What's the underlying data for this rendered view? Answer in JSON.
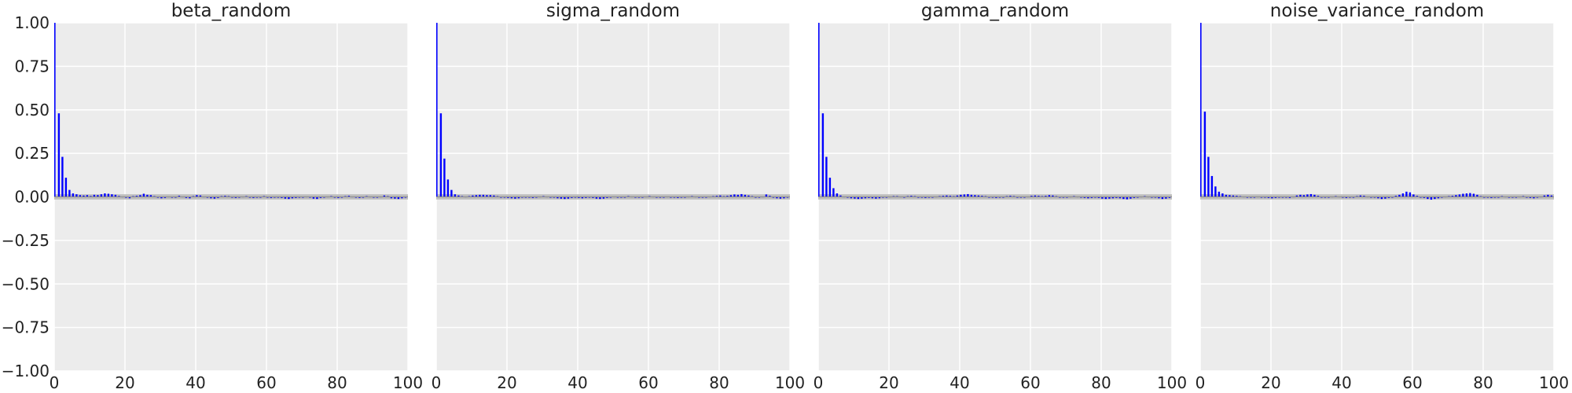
{
  "chart_data": [
    {
      "type": "bar",
      "title": "beta_random",
      "xlabel": "",
      "ylabel": "",
      "xlim": [
        0,
        100
      ],
      "ylim": [
        -1,
        1
      ],
      "xticks": [
        0,
        20,
        40,
        60,
        80,
        100
      ],
      "yticks": [
        -1.0,
        -0.75,
        -0.5,
        -0.25,
        0.0,
        0.25,
        0.5,
        0.75,
        1.0
      ],
      "ytick_labels": [
        "−1.00",
        "−0.75",
        "−0.50",
        "−0.25",
        "0.00",
        "0.25",
        "0.50",
        "0.75",
        "1.00"
      ],
      "xtick_labels": [
        "0",
        "20",
        "40",
        "60",
        "80",
        "100"
      ],
      "grid": true,
      "confidence_band": [
        -0.015,
        0.015
      ],
      "bar_color": "#0000ff",
      "band_color": "#bdbdbd",
      "lags": [
        0,
        1,
        2,
        3,
        4,
        5,
        6,
        7,
        8,
        9,
        10,
        11,
        12,
        13,
        14,
        15,
        16,
        17,
        18,
        19,
        20,
        21,
        22,
        23,
        24,
        25,
        26,
        27,
        28,
        29,
        30,
        31,
        32,
        33,
        34,
        35,
        36,
        37,
        38,
        39,
        40,
        41,
        42,
        43,
        44,
        45,
        46,
        47,
        48,
        49,
        50,
        51,
        52,
        53,
        54,
        55,
        56,
        57,
        58,
        59,
        60,
        61,
        62,
        63,
        64,
        65,
        66,
        67,
        68,
        69,
        70,
        71,
        72,
        73,
        74,
        75,
        76,
        77,
        78,
        79,
        80,
        81,
        82,
        83,
        84,
        85,
        86,
        87,
        88,
        89,
        90,
        91,
        92,
        93,
        94,
        95,
        96,
        97,
        98,
        99
      ],
      "values": [
        1.0,
        0.48,
        0.23,
        0.11,
        0.04,
        0.02,
        0.015,
        0.01,
        0.008,
        0.01,
        0.005,
        0.012,
        0.01,
        0.015,
        0.02,
        0.018,
        0.015,
        0.012,
        0.005,
        0.002,
        -0.005,
        -0.008,
        0.004,
        0.006,
        0.01,
        0.018,
        0.012,
        0.01,
        0.004,
        -0.003,
        -0.008,
        -0.006,
        0.002,
        -0.004,
        0.0,
        0.006,
        0.002,
        -0.006,
        -0.008,
        0.004,
        0.01,
        0.008,
        0.002,
        -0.004,
        -0.008,
        -0.01,
        -0.006,
        0.004,
        0.006,
        0.004,
        -0.002,
        -0.006,
        -0.004,
        0.002,
        0.004,
        -0.002,
        -0.006,
        -0.004,
        0.0,
        0.004,
        -0.002,
        -0.006,
        -0.004,
        -0.002,
        -0.006,
        -0.01,
        -0.012,
        -0.008,
        -0.006,
        -0.004,
        0.0,
        0.002,
        -0.004,
        -0.01,
        -0.012,
        -0.006,
        0.0,
        0.002,
        0.004,
        -0.004,
        -0.006,
        -0.002,
        0.004,
        0.006,
        0.002,
        -0.004,
        -0.006,
        -0.002,
        0.004,
        0.002,
        -0.002,
        -0.004,
        0.002,
        0.008,
        0.004,
        -0.008,
        -0.01,
        -0.012,
        -0.008,
        -0.004
      ]
    },
    {
      "type": "bar",
      "title": "sigma_random",
      "xlabel": "",
      "ylabel": "",
      "xlim": [
        0,
        100
      ],
      "ylim": [
        -1,
        1
      ],
      "xticks": [
        0,
        20,
        40,
        60,
        80,
        100
      ],
      "xtick_labels": [
        "0",
        "20",
        "40",
        "60",
        "80",
        "100"
      ],
      "grid": true,
      "confidence_band": [
        -0.015,
        0.015
      ],
      "bar_color": "#0000ff",
      "band_color": "#bdbdbd",
      "lags": [
        0,
        1,
        2,
        3,
        4,
        5,
        6,
        7,
        8,
        9,
        10,
        11,
        12,
        13,
        14,
        15,
        16,
        17,
        18,
        19,
        20,
        21,
        22,
        23,
        24,
        25,
        26,
        27,
        28,
        29,
        30,
        31,
        32,
        33,
        34,
        35,
        36,
        37,
        38,
        39,
        40,
        41,
        42,
        43,
        44,
        45,
        46,
        47,
        48,
        49,
        50,
        51,
        52,
        53,
        54,
        55,
        56,
        57,
        58,
        59,
        60,
        61,
        62,
        63,
        64,
        65,
        66,
        67,
        68,
        69,
        70,
        71,
        72,
        73,
        74,
        75,
        76,
        77,
        78,
        79,
        80,
        81,
        82,
        83,
        84,
        85,
        86,
        87,
        88,
        89,
        90,
        91,
        92,
        93,
        94,
        95,
        96,
        97,
        98,
        99
      ],
      "values": [
        1.0,
        0.48,
        0.22,
        0.1,
        0.04,
        0.015,
        0.008,
        0.004,
        0.002,
        0.004,
        0.008,
        0.01,
        0.012,
        0.012,
        0.01,
        0.01,
        0.008,
        0.004,
        0.0,
        -0.004,
        -0.006,
        -0.008,
        -0.01,
        -0.008,
        -0.004,
        0.0,
        -0.004,
        -0.006,
        -0.002,
        0.002,
        0.004,
        0.002,
        0.0,
        -0.004,
        -0.008,
        -0.01,
        -0.012,
        -0.01,
        -0.006,
        -0.004,
        -0.006,
        -0.008,
        -0.006,
        -0.004,
        -0.006,
        -0.01,
        -0.012,
        -0.01,
        -0.006,
        0.0,
        0.002,
        -0.002,
        -0.004,
        0.0,
        0.004,
        0.002,
        -0.002,
        -0.004,
        -0.002,
        0.002,
        0.004,
        0.002,
        -0.002,
        -0.004,
        -0.002,
        0.002,
        0.0,
        -0.004,
        -0.006,
        -0.004,
        -0.002,
        0.002,
        0.004,
        0.002,
        -0.002,
        -0.004,
        -0.002,
        0.002,
        0.004,
        0.006,
        0.008,
        0.004,
        0.006,
        0.01,
        0.014,
        0.012,
        0.016,
        0.012,
        0.008,
        0.004,
        0.0,
        -0.004,
        0.002,
        0.014,
        0.006,
        -0.004,
        -0.008,
        -0.01,
        -0.008,
        -0.004
      ]
    },
    {
      "type": "bar",
      "title": "gamma_random",
      "xlabel": "",
      "ylabel": "",
      "xlim": [
        0,
        100
      ],
      "ylim": [
        -1,
        1
      ],
      "xticks": [
        0,
        20,
        40,
        60,
        80,
        100
      ],
      "xtick_labels": [
        "0",
        "20",
        "40",
        "60",
        "80",
        "100"
      ],
      "grid": true,
      "confidence_band": [
        -0.015,
        0.015
      ],
      "bar_color": "#0000ff",
      "band_color": "#bdbdbd",
      "lags": [
        0,
        1,
        2,
        3,
        4,
        5,
        6,
        7,
        8,
        9,
        10,
        11,
        12,
        13,
        14,
        15,
        16,
        17,
        18,
        19,
        20,
        21,
        22,
        23,
        24,
        25,
        26,
        27,
        28,
        29,
        30,
        31,
        32,
        33,
        34,
        35,
        36,
        37,
        38,
        39,
        40,
        41,
        42,
        43,
        44,
        45,
        46,
        47,
        48,
        49,
        50,
        51,
        52,
        53,
        54,
        55,
        56,
        57,
        58,
        59,
        60,
        61,
        62,
        63,
        64,
        65,
        66,
        67,
        68,
        69,
        70,
        71,
        72,
        73,
        74,
        75,
        76,
        77,
        78,
        79,
        80,
        81,
        82,
        83,
        84,
        85,
        86,
        87,
        88,
        89,
        90,
        91,
        92,
        93,
        94,
        95,
        96,
        97,
        98,
        99
      ],
      "values": [
        1.0,
        0.48,
        0.23,
        0.11,
        0.05,
        0.02,
        0.008,
        0.002,
        -0.004,
        -0.008,
        -0.01,
        -0.012,
        -0.01,
        -0.008,
        -0.006,
        -0.008,
        -0.01,
        -0.008,
        -0.004,
        0.0,
        0.002,
        0.004,
        0.004,
        0.002,
        0.0,
        0.004,
        0.006,
        0.004,
        0.0,
        -0.004,
        -0.006,
        -0.004,
        -0.002,
        0.002,
        0.004,
        0.006,
        0.008,
        0.006,
        0.004,
        0.008,
        0.012,
        0.014,
        0.016,
        0.012,
        0.01,
        0.008,
        0.006,
        0.004,
        0.0,
        -0.004,
        -0.006,
        -0.004,
        0.0,
        0.004,
        0.006,
        0.004,
        0.0,
        -0.004,
        -0.002,
        0.002,
        0.006,
        0.008,
        0.006,
        0.004,
        0.006,
        0.01,
        0.008,
        0.004,
        0.0,
        -0.004,
        -0.002,
        0.002,
        0.004,
        0.002,
        -0.002,
        -0.006,
        -0.008,
        -0.006,
        -0.004,
        -0.006,
        -0.01,
        -0.012,
        -0.01,
        -0.008,
        -0.006,
        -0.008,
        -0.012,
        -0.014,
        -0.01,
        -0.006,
        -0.002,
        0.002,
        0.004,
        0.002,
        -0.002,
        -0.004,
        -0.008,
        -0.012,
        -0.01,
        -0.006
      ]
    },
    {
      "type": "bar",
      "title": "noise_variance_random",
      "xlabel": "",
      "ylabel": "",
      "xlim": [
        0,
        100
      ],
      "ylim": [
        -1,
        1
      ],
      "xticks": [
        0,
        20,
        40,
        60,
        80,
        100
      ],
      "xtick_labels": [
        "0",
        "20",
        "40",
        "60",
        "80",
        "100"
      ],
      "grid": true,
      "confidence_band": [
        -0.015,
        0.015
      ],
      "bar_color": "#0000ff",
      "band_color": "#bdbdbd",
      "lags": [
        0,
        1,
        2,
        3,
        4,
        5,
        6,
        7,
        8,
        9,
        10,
        11,
        12,
        13,
        14,
        15,
        16,
        17,
        18,
        19,
        20,
        21,
        22,
        23,
        24,
        25,
        26,
        27,
        28,
        29,
        30,
        31,
        32,
        33,
        34,
        35,
        36,
        37,
        38,
        39,
        40,
        41,
        42,
        43,
        44,
        45,
        46,
        47,
        48,
        49,
        50,
        51,
        52,
        53,
        54,
        55,
        56,
        57,
        58,
        59,
        60,
        61,
        62,
        63,
        64,
        65,
        66,
        67,
        68,
        69,
        70,
        71,
        72,
        73,
        74,
        75,
        76,
        77,
        78,
        79,
        80,
        81,
        82,
        83,
        84,
        85,
        86,
        87,
        88,
        89,
        90,
        91,
        92,
        93,
        94,
        95,
        96,
        97,
        98,
        99
      ],
      "values": [
        1.0,
        0.49,
        0.23,
        0.12,
        0.06,
        0.03,
        0.02,
        0.012,
        0.01,
        0.008,
        0.006,
        0.004,
        0.002,
        -0.002,
        -0.004,
        -0.002,
        0.002,
        0.0,
        -0.004,
        -0.006,
        -0.008,
        -0.006,
        -0.004,
        -0.002,
        -0.004,
        -0.006,
        0.002,
        0.008,
        0.012,
        0.01,
        0.014,
        0.016,
        0.012,
        0.006,
        0.0,
        -0.004,
        -0.002,
        0.002,
        0.004,
        0.002,
        -0.004,
        -0.006,
        -0.004,
        0.0,
        0.004,
        0.008,
        0.006,
        0.002,
        0.0,
        -0.004,
        -0.008,
        -0.012,
        -0.01,
        -0.006,
        0.0,
        0.006,
        0.012,
        0.02,
        0.03,
        0.026,
        0.014,
        0.006,
        0.0,
        -0.006,
        -0.012,
        -0.016,
        -0.012,
        -0.008,
        -0.004,
        0.002,
        0.004,
        0.006,
        0.01,
        0.014,
        0.018,
        0.02,
        0.022,
        0.018,
        0.012,
        0.004,
        0.0,
        -0.004,
        -0.006,
        -0.004,
        0.0,
        0.004,
        0.002,
        -0.002,
        -0.004,
        -0.002,
        0.002,
        0.004,
        0.0,
        -0.006,
        -0.008,
        -0.004,
        0.002,
        0.008,
        0.012,
        0.008
      ]
    }
  ]
}
